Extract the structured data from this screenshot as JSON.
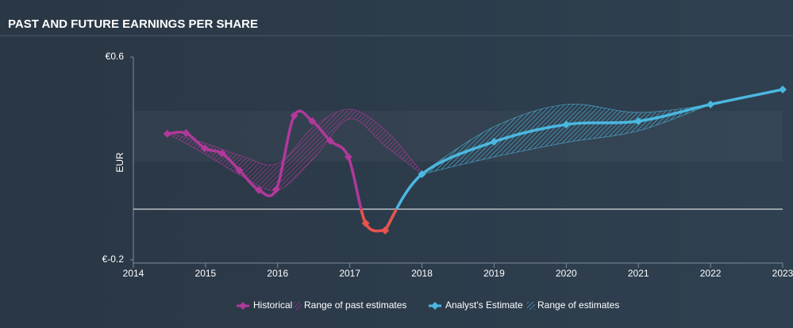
{
  "chart_data": {
    "type": "line",
    "title": "PAST AND FUTURE EARNINGS PER SHARE",
    "y_label": "EUR",
    "xlim": [
      2014,
      2023
    ],
    "xticks": [
      2014,
      2015,
      2016,
      2017,
      2018,
      2019,
      2020,
      2021,
      2022,
      2023
    ],
    "ylim": [
      -0.2,
      0.6
    ],
    "yticks": [
      {
        "value": -0.2,
        "label": "€-0.2"
      },
      {
        "value": 0.6,
        "label": "€0.6"
      }
    ],
    "zero_line": true,
    "series": [
      {
        "name": "Historical",
        "kind": "line",
        "color": "#b0399a",
        "negative_color": "#e8534a",
        "x": [
          2014.47,
          2014.73,
          2014.99,
          2015.23,
          2015.47,
          2015.74,
          2015.98,
          2016.23,
          2016.48,
          2016.73,
          2016.98,
          2017.22,
          2017.49
        ],
        "values": [
          0.297,
          0.3,
          0.24,
          0.22,
          0.153,
          0.075,
          0.078,
          0.369,
          0.347,
          0.269,
          0.206,
          -0.056,
          -0.084
        ]
      },
      {
        "name": "Range of past estimates",
        "kind": "band",
        "color": "#b0399a",
        "x": [
          2014.5,
          2015,
          2015.5,
          2016,
          2016.5,
          2017,
          2017.5,
          2018
        ],
        "upper": [
          0.3,
          0.26,
          0.21,
          0.18,
          0.325,
          0.394,
          0.31,
          0.144
        ],
        "lower": [
          0.294,
          0.216,
          0.131,
          0.075,
          0.2,
          0.356,
          0.247,
          0.138
        ]
      },
      {
        "name": "Analyst's Estimate",
        "kind": "line",
        "color": "#4bb8e0",
        "negative_color": "#e8534a",
        "x": [
          2017.49,
          2018,
          2019,
          2020,
          2021,
          2022,
          2023
        ],
        "values": [
          -0.084,
          0.138,
          0.266,
          0.334,
          0.347,
          0.413,
          0.472
        ]
      },
      {
        "name": "Range of estimates",
        "kind": "band",
        "color": "#4bb8e0",
        "x": [
          2018,
          2019,
          2020,
          2021,
          2022
        ],
        "upper": [
          0.144,
          0.325,
          0.413,
          0.381,
          0.413
        ],
        "lower": [
          0.138,
          0.206,
          0.263,
          0.309,
          0.413
        ]
      }
    ]
  }
}
